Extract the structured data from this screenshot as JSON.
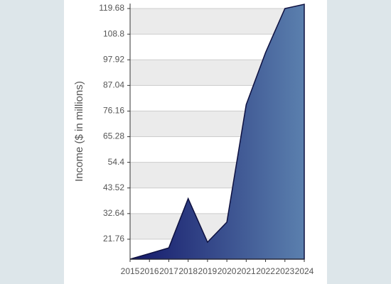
{
  "chart_data": {
    "type": "area",
    "y_label": "Income ($ in millions)",
    "categories": [
      "2015",
      "2016",
      "2017",
      "2018",
      "2019",
      "2020",
      "2021",
      "2022",
      "2023",
      "2024"
    ],
    "values": [
      13.3,
      15.7,
      18.1,
      39,
      20.5,
      29,
      78.9,
      101,
      119.7,
      121.5
    ],
    "gradient": [
      "#14186a",
      "#5b80ae"
    ],
    "ylim": [
      13.3,
      121.8
    ],
    "yticks": [
      21.76,
      32.64,
      43.52,
      54.4,
      65.28,
      76.16,
      87.04,
      97.92,
      108.8,
      119.68
    ],
    "grid": true
  }
}
